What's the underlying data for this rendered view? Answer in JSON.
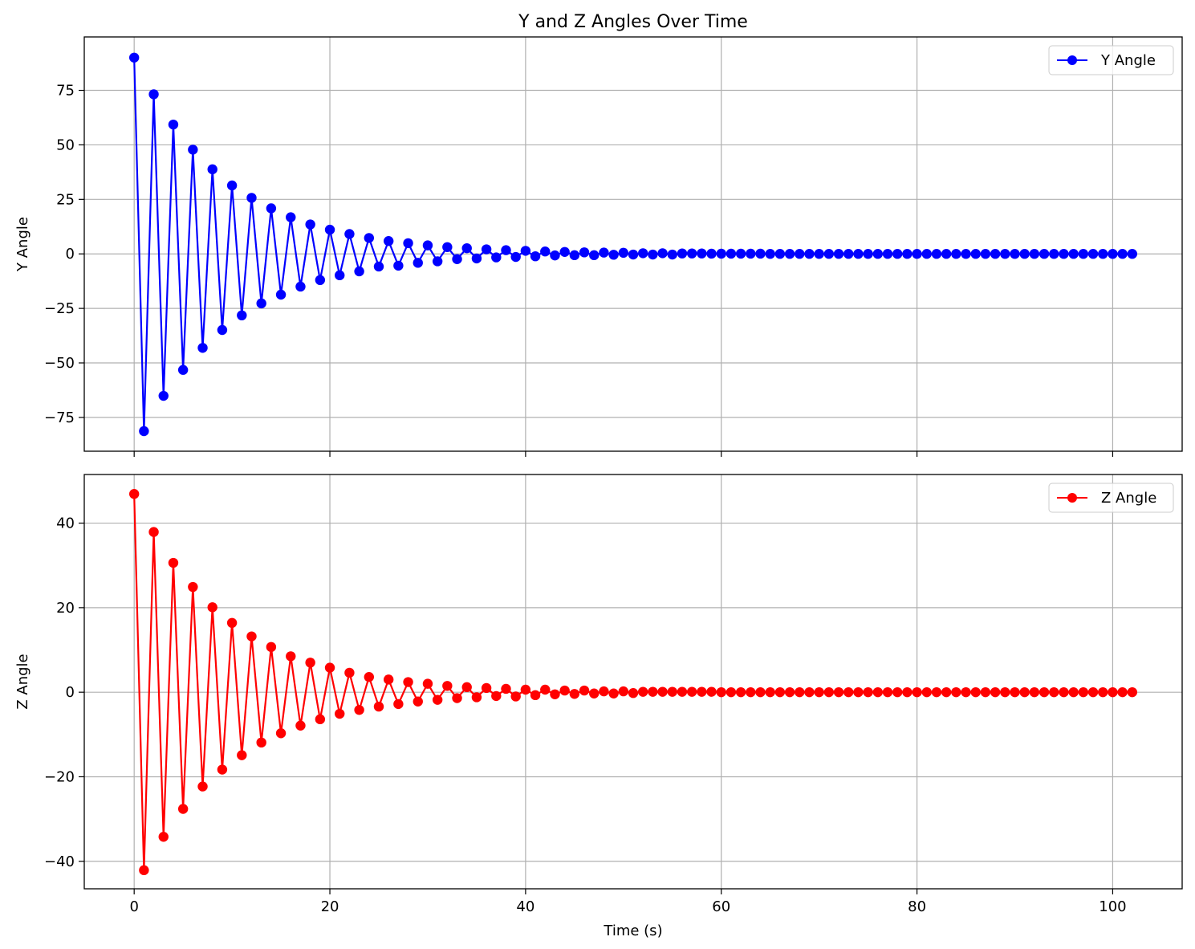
{
  "chart_data": {
    "type": "line",
    "title": "Y and Z Angles Over Time",
    "xlabel": "Time (s)",
    "xlim": [
      -5.1,
      107.1
    ],
    "xticks": [
      0,
      20,
      40,
      60,
      80,
      100
    ],
    "x": [
      0,
      1,
      2,
      3,
      4,
      5,
      6,
      7,
      8,
      9,
      10,
      11,
      12,
      13,
      14,
      15,
      16,
      17,
      18,
      19,
      20,
      21,
      22,
      23,
      24,
      25,
      26,
      27,
      28,
      29,
      30,
      31,
      32,
      33,
      34,
      35,
      36,
      37,
      38,
      39,
      40,
      41,
      42,
      43,
      44,
      45,
      46,
      47,
      48,
      49,
      50,
      51,
      52,
      53,
      54,
      55,
      56,
      57,
      58,
      59,
      60,
      61,
      62,
      63,
      64,
      65,
      66,
      67,
      68,
      69,
      70,
      71,
      72,
      73,
      74,
      75,
      76,
      77,
      78,
      79,
      80,
      81,
      82,
      83,
      84,
      85,
      86,
      87,
      88,
      89,
      90,
      91,
      92,
      93,
      94,
      95,
      96,
      97,
      98,
      99,
      100,
      101,
      102
    ],
    "grid": true,
    "panels": [
      {
        "ylabel": "Y Angle",
        "ylim": [
          -90.5,
          99.5
        ],
        "yticks": [
          -75,
          -50,
          -25,
          0,
          25,
          50,
          75
        ],
        "legend_position": "top-right",
        "series": [
          {
            "name": "Y Angle",
            "color": "#0000ff",
            "marker": "circle",
            "values": [
              90.0,
              -81.3,
              73.2,
              -65.1,
              59.3,
              -53.2,
              47.8,
              -43.1,
              38.8,
              -34.9,
              31.4,
              -28.2,
              25.7,
              -22.7,
              20.9,
              -18.7,
              16.8,
              -15.0,
              13.5,
              -12.0,
              11.1,
              -9.8,
              9.1,
              -8.0,
              7.3,
              -5.8,
              5.9,
              -5.4,
              4.9,
              -4.1,
              3.9,
              -3.4,
              3.1,
              -2.4,
              2.6,
              -2.1,
              2.1,
              -1.6,
              1.7,
              -1.4,
              1.4,
              -1.1,
              1.1,
              -0.7,
              0.9,
              -0.6,
              0.7,
              -0.6,
              0.6,
              -0.4,
              0.5,
              -0.3,
              0.3,
              -0.3,
              0.3,
              -0.3,
              0.2,
              0.2,
              0.2,
              0.1,
              0.1,
              0.1,
              0.1,
              0.1,
              0.1,
              0,
              0,
              0,
              0,
              0,
              0,
              0,
              0,
              0,
              0,
              0,
              0,
              0,
              0,
              0,
              0,
              0,
              0,
              0,
              0,
              0,
              0,
              0,
              0,
              0,
              0,
              0,
              0,
              0,
              0,
              0,
              0,
              0,
              0,
              0,
              0,
              0,
              0
            ]
          }
        ]
      },
      {
        "ylabel": "Z Angle",
        "ylim": [
          -46.5,
          51.5
        ],
        "yticks": [
          -40,
          -20,
          0,
          20,
          40
        ],
        "legend_position": "top-right",
        "series": [
          {
            "name": "Z Angle",
            "color": "#ff0000",
            "marker": "circle",
            "values": [
              46.9,
              -42.1,
              37.9,
              -34.2,
              30.6,
              -27.6,
              24.9,
              -22.3,
              20.1,
              -18.3,
              16.4,
              -14.9,
              13.2,
              -11.9,
              10.7,
              -9.7,
              8.5,
              -7.9,
              7.0,
              -6.4,
              5.8,
              -5.1,
              4.6,
              -4.2,
              3.6,
              -3.4,
              3.0,
              -2.8,
              2.4,
              -2.2,
              2.0,
              -1.8,
              1.5,
              -1.4,
              1.2,
              -1.2,
              1.0,
              -0.9,
              0.8,
              -1.0,
              0.6,
              -0.7,
              0.6,
              -0.5,
              0.4,
              -0.4,
              0.4,
              -0.3,
              0.2,
              -0.3,
              0.2,
              -0.2,
              0.1,
              0.1,
              0.1,
              0.1,
              0.1,
              0.1,
              0.1,
              0.1,
              0,
              0,
              0,
              0,
              0,
              0,
              0,
              0,
              0,
              0,
              0,
              0,
              0,
              0,
              0,
              0,
              0,
              0,
              0,
              0,
              0,
              0,
              0,
              0,
              0,
              0,
              0,
              0,
              0,
              0,
              0,
              0,
              0,
              0,
              0,
              0,
              0,
              0,
              0,
              0,
              0,
              0,
              0
            ]
          }
        ]
      }
    ]
  }
}
